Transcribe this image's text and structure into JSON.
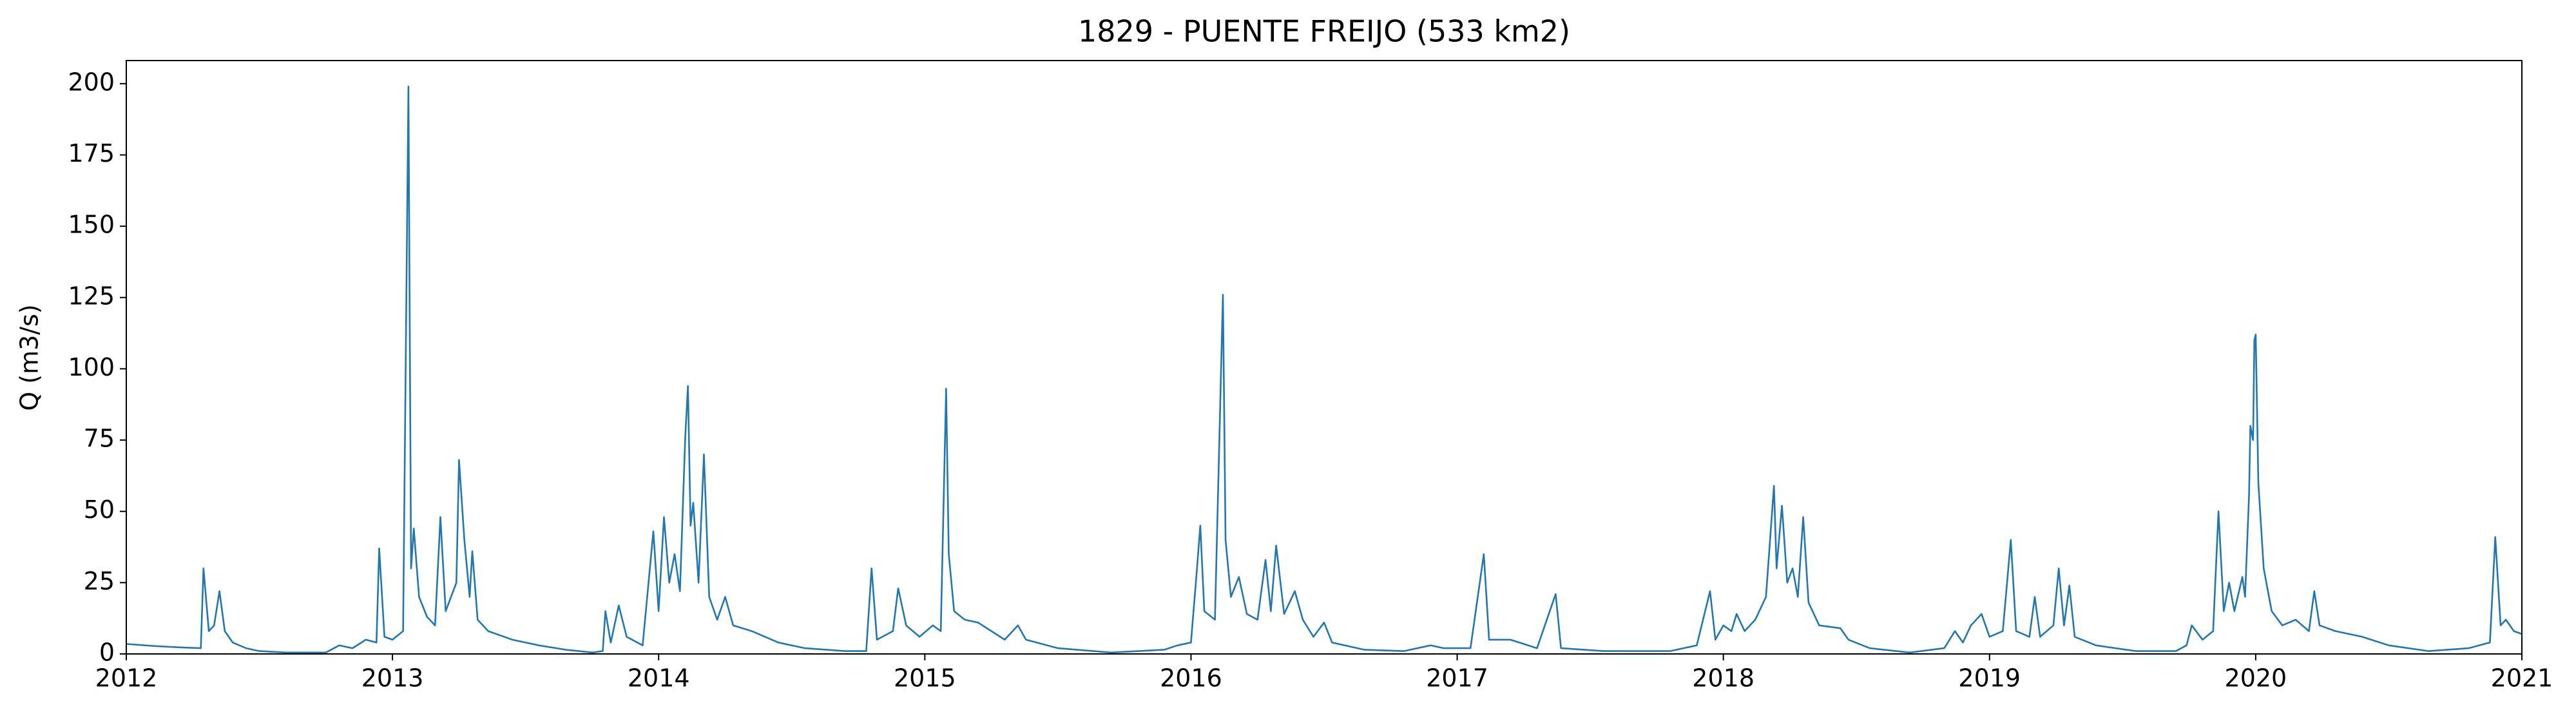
{
  "chart_data": {
    "type": "line",
    "title": "1829 - PUENTE FREIJO (533 km2)",
    "y_label": "Q (m3/s)",
    "x": [
      2012.0,
      2012.1,
      2012.2,
      2012.28,
      2012.29,
      2012.31,
      2012.33,
      2012.35,
      2012.37,
      2012.4,
      2012.45,
      2012.5,
      2012.6,
      2012.75,
      2012.8,
      2012.85,
      2012.9,
      2012.94,
      2012.95,
      2012.97,
      2013.0,
      2013.04,
      2013.06,
      2013.07,
      2013.08,
      2013.1,
      2013.13,
      2013.16,
      2013.18,
      2013.2,
      2013.24,
      2013.25,
      2013.27,
      2013.29,
      2013.3,
      2013.32,
      2013.36,
      2013.45,
      2013.55,
      2013.65,
      2013.75,
      2013.79,
      2013.8,
      2013.82,
      2013.85,
      2013.88,
      2013.94,
      2013.98,
      2014.0,
      2014.02,
      2014.04,
      2014.06,
      2014.08,
      2014.1,
      2014.11,
      2014.12,
      2014.13,
      2014.15,
      2014.17,
      2014.19,
      2014.22,
      2014.25,
      2014.28,
      2014.35,
      2014.45,
      2014.55,
      2014.7,
      2014.78,
      2014.8,
      2014.82,
      2014.88,
      2014.9,
      2014.93,
      2014.98,
      2015.03,
      2015.06,
      2015.08,
      2015.09,
      2015.11,
      2015.15,
      2015.2,
      2015.3,
      2015.35,
      2015.38,
      2015.5,
      2015.7,
      2015.9,
      2015.95,
      2016.0,
      2016.02,
      2016.035,
      2016.05,
      2016.09,
      2016.12,
      2016.13,
      2016.15,
      2016.18,
      2016.21,
      2016.25,
      2016.28,
      2016.3,
      2016.32,
      2016.35,
      2016.39,
      2016.42,
      2016.46,
      2016.5,
      2016.53,
      2016.65,
      2016.8,
      2016.9,
      2016.95,
      2017.05,
      2017.1,
      2017.12,
      2017.2,
      2017.3,
      2017.37,
      2017.39,
      2017.55,
      2017.8,
      2017.9,
      2017.95,
      2017.97,
      2018.0,
      2018.03,
      2018.05,
      2018.08,
      2018.12,
      2018.16,
      2018.19,
      2018.2,
      2018.22,
      2018.24,
      2018.26,
      2018.28,
      2018.3,
      2018.32,
      2018.36,
      2018.44,
      2018.47,
      2018.55,
      2018.7,
      2018.83,
      2018.87,
      2018.9,
      2018.93,
      2018.97,
      2019.0,
      2019.05,
      2019.08,
      2019.1,
      2019.15,
      2019.17,
      2019.19,
      2019.24,
      2019.26,
      2019.28,
      2019.3,
      2019.32,
      2019.4,
      2019.55,
      2019.7,
      2019.74,
      2019.76,
      2019.8,
      2019.84,
      2019.86,
      2019.88,
      2019.9,
      2019.92,
      2019.95,
      2019.96,
      2019.975,
      2019.98,
      2019.99,
      2019.995,
      2020.0,
      2020.01,
      2020.03,
      2020.06,
      2020.1,
      2020.15,
      2020.2,
      2020.22,
      2020.24,
      2020.3,
      2020.4,
      2020.5,
      2020.65,
      2020.8,
      2020.88,
      2020.9,
      2020.92,
      2020.94,
      2020.97,
      2021.0
    ],
    "series": [
      {
        "color": "#1f77b4",
        "values": [
          3.5,
          2.8,
          2.3,
          2,
          30,
          8,
          10,
          22,
          8,
          4,
          2,
          1,
          0.5,
          0.5,
          3,
          2,
          5,
          4,
          37,
          6,
          5,
          8,
          199,
          30,
          44,
          20,
          13,
          10,
          48,
          15,
          25,
          68,
          40,
          20,
          36,
          12,
          8,
          5,
          3,
          1.5,
          0.5,
          1,
          15,
          4,
          17,
          6,
          3,
          43,
          15,
          48,
          25,
          35,
          22,
          76,
          94,
          45,
          53,
          25,
          70,
          20,
          12,
          20,
          10,
          8,
          4,
          2,
          1,
          1,
          30,
          5,
          8,
          23,
          10,
          6,
          10,
          8,
          93,
          35,
          15,
          12,
          11,
          5,
          10,
          5,
          2,
          0.5,
          1.5,
          3,
          4,
          27,
          45,
          15,
          12,
          126,
          40,
          20,
          27,
          14,
          12,
          33,
          15,
          38,
          14,
          22,
          12,
          6,
          11,
          4,
          1.5,
          1,
          3,
          2,
          2,
          35,
          5,
          5,
          2,
          21,
          2,
          1,
          1,
          3,
          22,
          5,
          10,
          8,
          14,
          8,
          12,
          20,
          59,
          30,
          52,
          25,
          30,
          20,
          48,
          18,
          10,
          9,
          5,
          2,
          0.5,
          2,
          8,
          4,
          10,
          14,
          6,
          8,
          40,
          8,
          6,
          20,
          6,
          10,
          30,
          10,
          24,
          6,
          3,
          1,
          1,
          3,
          10,
          5,
          8,
          50,
          15,
          25,
          15,
          27,
          20,
          56,
          80,
          75,
          110,
          112,
          60,
          30,
          15,
          10,
          12,
          8,
          22,
          10,
          8,
          6,
          3,
          1,
          2,
          4,
          41,
          10,
          12,
          8,
          7
        ]
      }
    ],
    "xlim": [
      2012,
      2021
    ],
    "xticks": [
      2012,
      2013,
      2014,
      2015,
      2016,
      2017,
      2018,
      2019,
      2020,
      2021
    ],
    "ylim": [
      0,
      208.1
    ],
    "yticks": [
      0,
      25,
      50,
      75,
      100,
      125,
      150,
      175,
      200
    ]
  }
}
